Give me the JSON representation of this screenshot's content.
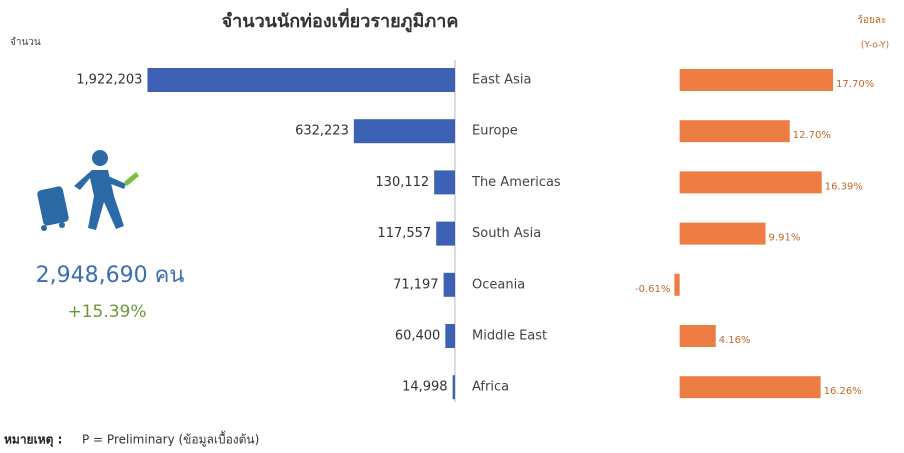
{
  "chart_data": [
    {
      "type": "bar",
      "orientation": "horizontal-left",
      "title": "จำนวนนักท่องเที่ยวรายภูมิภาค",
      "x_label": "จำนวน",
      "categories": [
        "East Asia",
        "Europe",
        "The Americas",
        "South Asia",
        "Oceania",
        "Middle East",
        "Africa"
      ],
      "values": [
        1922203,
        632223,
        130112,
        117557,
        71197,
        60400,
        14998
      ],
      "value_labels": [
        "1,922,203",
        "632,223",
        "130,112",
        "117,557",
        "71,197",
        "60,400",
        "14,998"
      ],
      "color": "#3d62b5",
      "xlim": [
        0,
        2000000
      ]
    },
    {
      "type": "bar",
      "orientation": "horizontal",
      "x_label": "ร้อยละ",
      "x_sublabel": "(Y-o-Y)",
      "values": [
        17.7,
        12.7,
        16.39,
        9.91,
        -0.61,
        4.16,
        16.26
      ],
      "value_labels": [
        "17.70%",
        "12.70%",
        "16.39%",
        "9.91%",
        "-0.61%",
        "4.16%",
        "16.26%"
      ],
      "color": "#ee7d43",
      "xlim": [
        -1,
        20
      ]
    }
  ],
  "summary": {
    "total": "2,948,690 คน",
    "growth": "+15.39%"
  },
  "footnote": {
    "label": "หมายเหตุ :",
    "text": "P = Preliminary (ข้อมูลเบื้องต้น)"
  }
}
